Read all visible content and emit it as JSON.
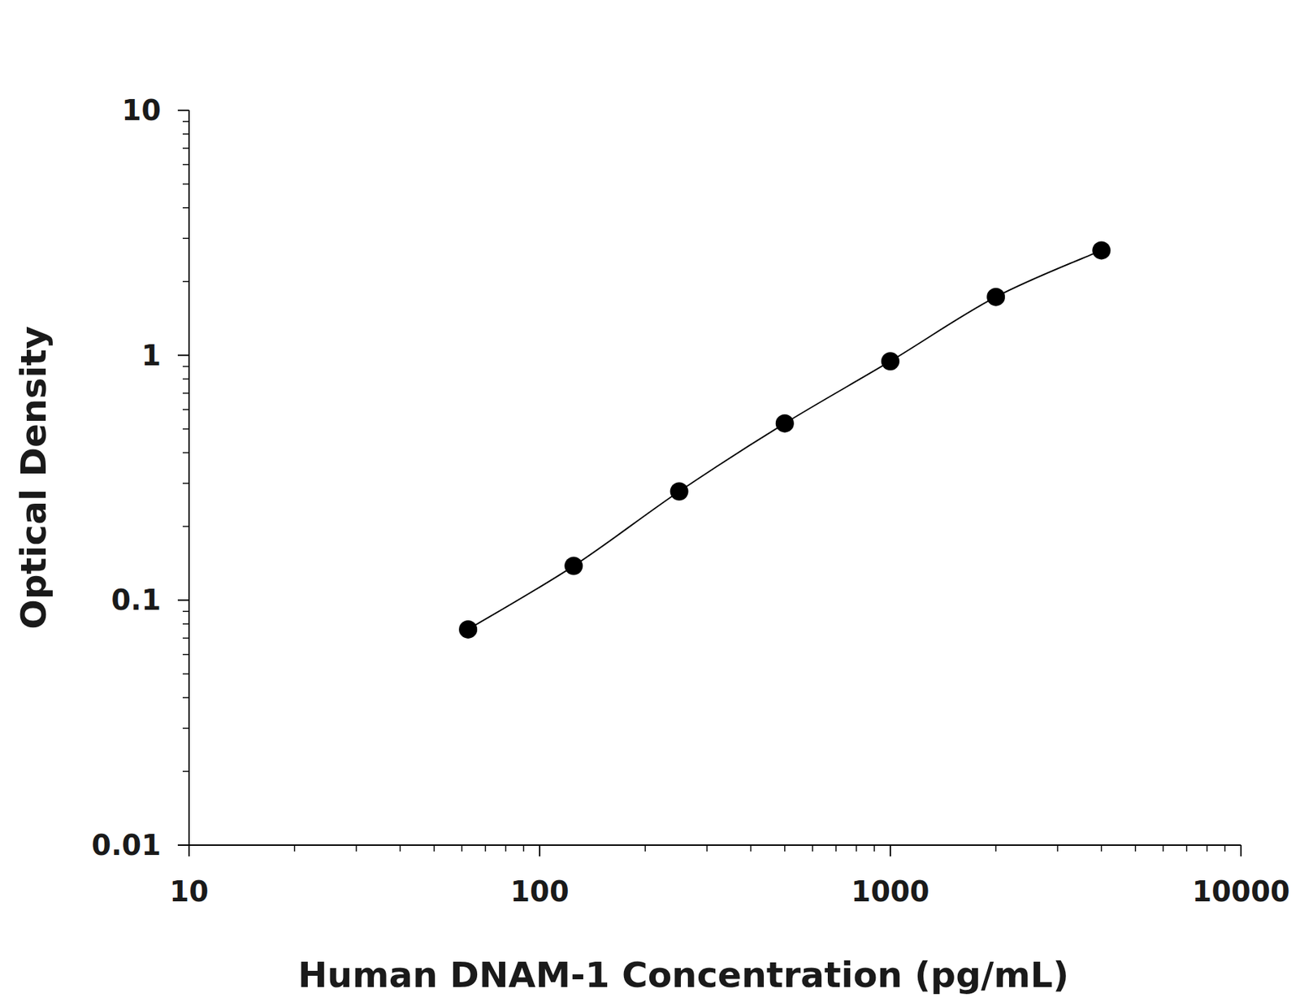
{
  "chart_data": {
    "type": "scatter",
    "x_label": "Human DNAM-1 Concentration (pg/mL)",
    "y_label": "Optical Density",
    "x": [
      62.5,
      125,
      250,
      500,
      1000,
      2000,
      4000
    ],
    "values": [
      0.076,
      0.138,
      0.278,
      0.527,
      0.945,
      1.73,
      2.68
    ],
    "log": true,
    "marker": "circle",
    "line_style": "solid",
    "color": "#000000",
    "grid": false,
    "xlim": [
      10,
      10000
    ],
    "xticks": [
      10,
      100,
      1000,
      10000
    ],
    "ylim": [
      0.01,
      10
    ],
    "yticks": [
      0.01,
      0.1,
      1,
      10
    ]
  }
}
